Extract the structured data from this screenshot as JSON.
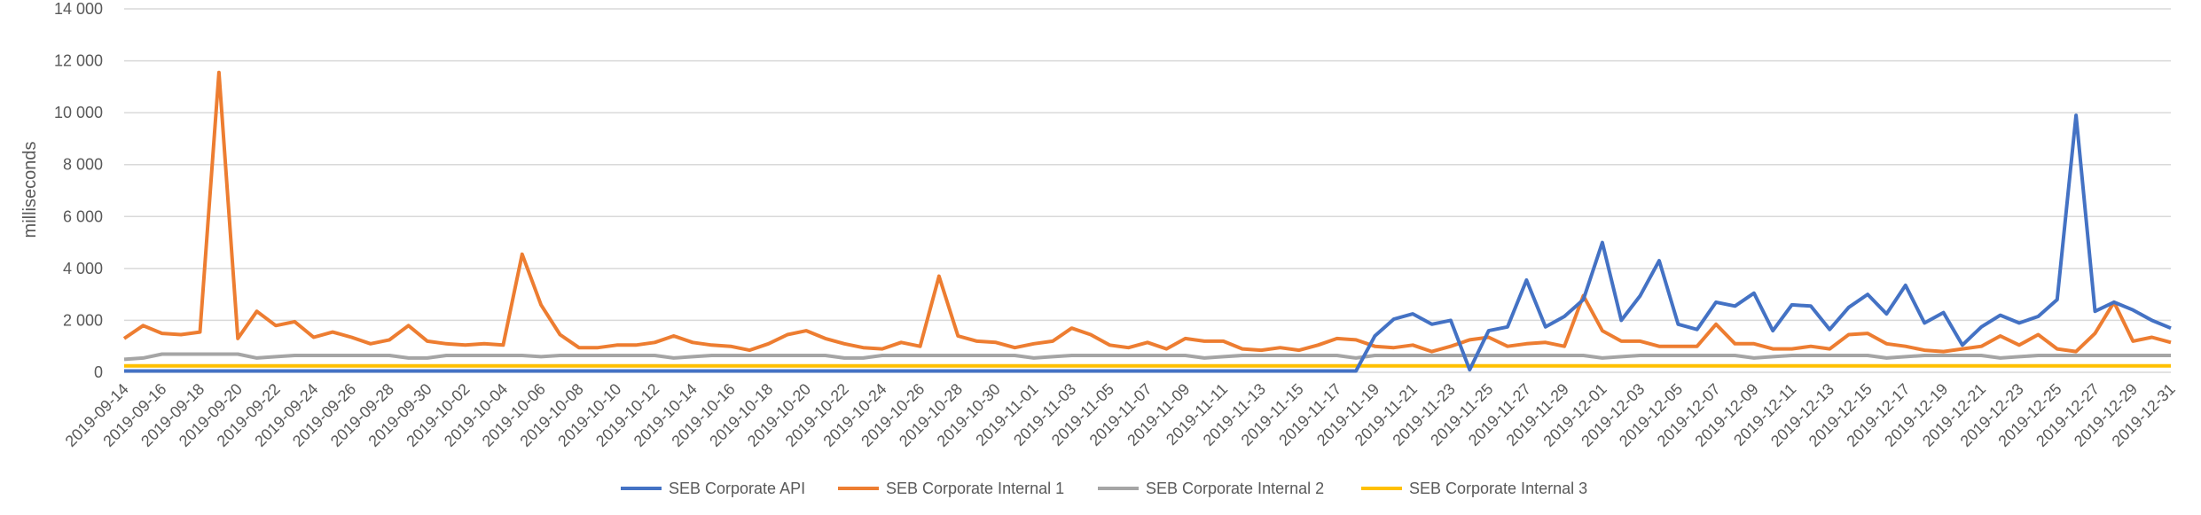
{
  "chart_data": {
    "type": "line",
    "title": "",
    "xlabel": "",
    "ylabel": "milliseconds",
    "ylim": [
      0,
      14000
    ],
    "yticks": [
      0,
      2000,
      4000,
      6000,
      8000,
      10000,
      12000,
      14000
    ],
    "ytick_labels": [
      "0",
      "2 000",
      "4 000",
      "6 000",
      "8 000",
      "10 000",
      "12 000",
      "14 000"
    ],
    "grid": true,
    "legend_position": "bottom",
    "x_start": "2019-09-14",
    "x_end": "2019-12-31",
    "x_tick_labels": [
      "2019-09-14",
      "2019-09-16",
      "2019-09-18",
      "2019-09-20",
      "2019-09-22",
      "2019-09-24",
      "2019-09-26",
      "2019-09-28",
      "2019-09-30",
      "2019-10-02",
      "2019-10-04",
      "2019-10-06",
      "2019-10-08",
      "2019-10-10",
      "2019-10-12",
      "2019-10-14",
      "2019-10-16",
      "2019-10-18",
      "2019-10-20",
      "2019-10-22",
      "2019-10-24",
      "2019-10-26",
      "2019-10-28",
      "2019-10-30",
      "2019-11-01",
      "2019-11-03",
      "2019-11-05",
      "2019-11-07",
      "2019-11-09",
      "2019-11-11",
      "2019-11-13",
      "2019-11-15",
      "2019-11-17",
      "2019-11-19",
      "2019-11-21",
      "2019-11-23",
      "2019-11-25",
      "2019-11-27",
      "2019-11-29",
      "2019-12-01",
      "2019-12-03",
      "2019-12-05",
      "2019-12-07",
      "2019-12-09",
      "2019-12-11",
      "2019-12-13",
      "2019-12-15",
      "2019-12-17",
      "2019-12-19",
      "2019-12-21",
      "2019-12-23",
      "2019-12-25",
      "2019-12-27",
      "2019-12-29",
      "2019-12-31"
    ],
    "series": [
      {
        "name": "SEB Corporate API",
        "color": "#4472C4",
        "values": [
          50,
          50,
          50,
          50,
          50,
          50,
          50,
          50,
          50,
          50,
          50,
          50,
          50,
          50,
          50,
          50,
          50,
          50,
          50,
          50,
          50,
          50,
          50,
          50,
          50,
          50,
          50,
          50,
          50,
          50,
          50,
          50,
          50,
          50,
          50,
          50,
          50,
          50,
          50,
          50,
          50,
          50,
          50,
          50,
          50,
          50,
          50,
          50,
          50,
          50,
          50,
          50,
          50,
          50,
          50,
          50,
          50,
          50,
          50,
          50,
          50,
          50,
          50,
          50,
          50,
          50,
          1400,
          2050,
          2250,
          1850,
          2000,
          100,
          1600,
          1750,
          3550,
          1750,
          2150,
          2800,
          5000,
          2000,
          2950,
          4300,
          1850,
          1650,
          2700,
          2550,
          3050,
          1600,
          2600,
          2550,
          1650,
          2500,
          3000,
          2250,
          3350,
          1900,
          2300,
          1050,
          1750,
          2200,
          1900,
          2150,
          2800,
          9900,
          2350,
          2700,
          2400,
          2000,
          1700
        ]
      },
      {
        "name": "SEB Corporate Internal 1",
        "color": "#ED7D31",
        "values": [
          1300,
          1800,
          1500,
          1450,
          1550,
          11550,
          1300,
          2350,
          1800,
          1950,
          1350,
          1550,
          1350,
          1100,
          1250,
          1800,
          1200,
          1100,
          1050,
          1100,
          1050,
          4550,
          2600,
          1450,
          950,
          950,
          1050,
          1050,
          1150,
          1400,
          1150,
          1050,
          1000,
          850,
          1100,
          1450,
          1600,
          1300,
          1100,
          950,
          900,
          1150,
          1000,
          3700,
          1400,
          1200,
          1150,
          950,
          1100,
          1200,
          1700,
          1450,
          1050,
          950,
          1150,
          900,
          1300,
          1200,
          1200,
          900,
          850,
          950,
          850,
          1050,
          1300,
          1250,
          1000,
          950,
          1050,
          800,
          1000,
          1250,
          1350,
          1000,
          1100,
          1150,
          1000,
          2950,
          1600,
          1200,
          1200,
          1000,
          1000,
          1000,
          1850,
          1100,
          1100,
          900,
          900,
          1000,
          900,
          1450,
          1500,
          1100,
          1000,
          850,
          800,
          900,
          1000,
          1400,
          1050,
          1450,
          900,
          800,
          1500,
          2700,
          1200,
          1350,
          1150
        ]
      },
      {
        "name": "SEB Corporate Internal 2",
        "color": "#A5A5A5",
        "values": [
          500,
          550,
          700,
          700,
          700,
          700,
          700,
          550,
          600,
          650,
          650,
          650,
          650,
          650,
          650,
          550,
          550,
          650,
          650,
          650,
          650,
          650,
          600,
          650,
          650,
          650,
          650,
          650,
          650,
          550,
          600,
          650,
          650,
          650,
          650,
          650,
          650,
          650,
          550,
          550,
          650,
          650,
          650,
          650,
          650,
          650,
          650,
          650,
          550,
          600,
          650,
          650,
          650,
          650,
          650,
          650,
          650,
          550,
          600,
          650,
          650,
          650,
          650,
          650,
          650,
          550,
          650,
          650,
          650,
          650,
          650,
          650,
          650,
          650,
          650,
          650,
          650,
          650,
          550,
          600,
          650,
          650,
          650,
          650,
          650,
          650,
          550,
          600,
          650,
          650,
          650,
          650,
          650,
          550,
          600,
          650,
          650,
          650,
          650,
          550,
          600,
          650,
          650,
          650,
          650,
          650,
          650,
          650,
          650
        ]
      },
      {
        "name": "SEB Corporate Internal 3",
        "color": "#FFC000",
        "values": [
          250,
          250,
          250,
          250,
          250,
          250,
          250,
          250,
          250,
          250,
          250,
          250,
          250,
          250,
          250,
          250,
          250,
          250,
          250,
          250,
          250,
          250,
          250,
          250,
          250,
          250,
          250,
          250,
          250,
          250,
          250,
          250,
          250,
          250,
          250,
          250,
          250,
          250,
          250,
          250,
          250,
          250,
          250,
          250,
          250,
          250,
          250,
          250,
          250,
          250,
          250,
          250,
          250,
          250,
          250,
          250,
          250,
          250,
          250,
          250,
          250,
          250,
          250,
          250,
          250,
          250,
          250,
          250,
          250,
          250,
          250,
          250,
          250,
          250,
          250,
          250,
          250,
          250,
          250,
          250,
          250,
          250,
          250,
          250,
          250,
          250,
          250,
          250,
          250,
          250,
          250,
          250,
          250,
          250,
          250,
          250,
          250,
          250,
          250,
          250,
          250,
          250,
          250,
          250,
          250,
          250,
          250,
          250,
          250
        ]
      }
    ]
  }
}
